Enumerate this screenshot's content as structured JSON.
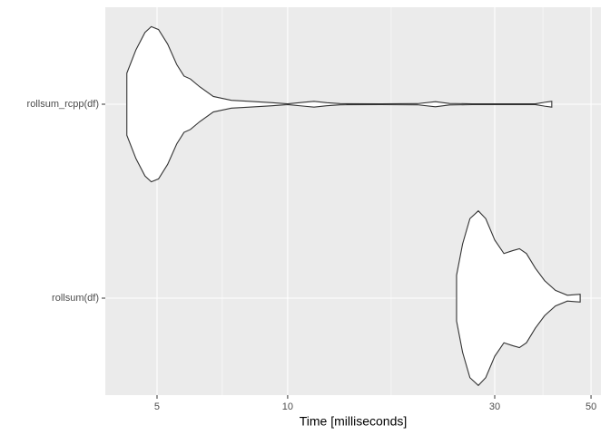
{
  "chart_data": {
    "type": "violin",
    "categories": [
      "rollsum(df)",
      "rollsum_rcpp(df)"
    ],
    "violins": [
      {
        "x": [
          24.5,
          25.3,
          26.3,
          27.5,
          28.6,
          30,
          31.5,
          33.0,
          34.2,
          35.5,
          37.2,
          39.1,
          41.4,
          44.1,
          47.2
        ],
        "density": [
          0.118,
          0.28,
          0.41,
          0.45,
          0.41,
          0.3,
          0.23,
          0.245,
          0.255,
          0.23,
          0.155,
          0.09,
          0.04,
          0.015,
          0.02
        ]
      },
      {
        "x": [
          4.26,
          4.47,
          4.69,
          4.85,
          5.04,
          5.29,
          5.55,
          5.77,
          5.97,
          6.27,
          6.74,
          7.42,
          8.17,
          9.21,
          10,
          10.9,
          11.5,
          12.3,
          13.2,
          16.4,
          19.9,
          21.9,
          23.6,
          26.6,
          37.2,
          39.1,
          40.6
        ],
        "density": [
          0.16,
          0.28,
          0.37,
          0.4,
          0.385,
          0.31,
          0.205,
          0.145,
          0.13,
          0.09,
          0.04,
          0.02,
          0.015,
          0.008,
          0.002,
          0.01,
          0.015,
          0.008,
          0.003,
          0.002,
          0.003,
          0.013,
          0.004,
          0.002,
          0.002,
          0.01,
          0.015
        ]
      }
    ],
    "fill": "#ffffff",
    "color": "#333333",
    "xlabel": "Time [milliseconds]",
    "xlim": [
      3.8,
      52.7
    ],
    "xticks": [
      5,
      10,
      30,
      50
    ],
    "xlog": true,
    "grid": true
  }
}
